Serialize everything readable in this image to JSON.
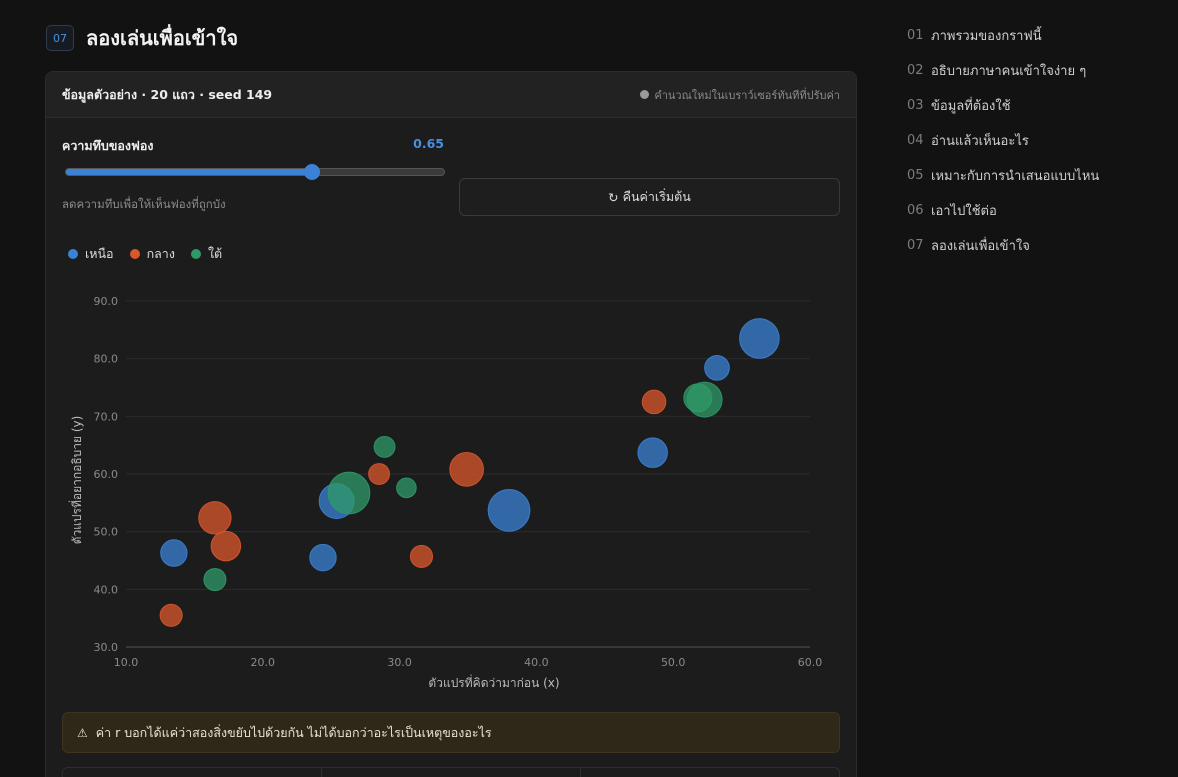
{
  "section": {
    "number": "07",
    "title": "ลองเล่นเพื่อเข้าใจ"
  },
  "card": {
    "title": "ข้อมูลตัวอย่าง · 20 แถว · seed 149",
    "note": "คำนวณใหม่ในเบราว์เซอร์ทันทีที่ปรับค่า"
  },
  "slider": {
    "label": "ความทึบของฟอง",
    "value": 0.65,
    "value_label": "0.65",
    "hint": "ลดความทึบเพื่อให้เห็นฟองที่ถูกบัง"
  },
  "reset_button": {
    "icon": "reset-icon",
    "glyph": "↻",
    "label": "คืนค่าเริ่มต้น"
  },
  "warning": {
    "icon": "warning-icon",
    "glyph": "⚠",
    "text": "ค่า r บอกได้แค่ว่าสองสิ่งขยับไปด้วยกัน ไม่ได้บอกว่าอะไรเป็นเหตุของอะไร"
  },
  "toc": [
    {
      "num": "01",
      "label": "ภาพรวมของกราฟนี้"
    },
    {
      "num": "02",
      "label": "อธิบายภาษาคนเข้าใจง่าย ๆ"
    },
    {
      "num": "03",
      "label": "ข้อมูลที่ต้องใช้"
    },
    {
      "num": "04",
      "label": "อ่านแล้วเห็นอะไร"
    },
    {
      "num": "05",
      "label": "เหมาะกับการนำเสนอแบบไหน"
    },
    {
      "num": "06",
      "label": "เอาไปใช้ต่อ"
    },
    {
      "num": "07",
      "label": "ลองเล่นเพื่อเข้าใจ"
    }
  ],
  "colors": {
    "north": "#3b82d6",
    "central": "#d9572b",
    "south": "#2f9a68",
    "accent": "#4a8fe0"
  },
  "chart_data": {
    "type": "scatter",
    "bubble": true,
    "xlabel": "ตัวแปรที่คิดว่ามาก่อน (x)",
    "ylabel": "ตัวแปรที่อยากอธิบาย (y)",
    "xlim": [
      10,
      60
    ],
    "ylim": [
      30,
      90
    ],
    "xticks": [
      "10.0",
      "20.0",
      "30.0",
      "40.0",
      "50.0",
      "60.0"
    ],
    "yticks": [
      "30.0",
      "40.0",
      "50.0",
      "60.0",
      "70.0",
      "80.0",
      "90.0"
    ],
    "grid": true,
    "legend_position": "top-left",
    "series": [
      {
        "name": "เหนือ",
        "color": "#3b82d6",
        "points": [
          {
            "x": 13.5,
            "y": 46.3,
            "size": 4
          },
          {
            "x": 24.4,
            "y": 45.5,
            "size": 4
          },
          {
            "x": 25.4,
            "y": 55.3,
            "size": 7
          },
          {
            "x": 38.0,
            "y": 53.7,
            "size": 10
          },
          {
            "x": 48.5,
            "y": 63.7,
            "size": 5
          },
          {
            "x": 53.2,
            "y": 78.4,
            "size": 3.5
          },
          {
            "x": 56.3,
            "y": 83.5,
            "size": 9
          }
        ]
      },
      {
        "name": "กลาง",
        "color": "#d9572b",
        "points": [
          {
            "x": 13.3,
            "y": 35.5,
            "size": 2.8
          },
          {
            "x": 16.5,
            "y": 52.4,
            "size": 6
          },
          {
            "x": 17.3,
            "y": 47.5,
            "size": 5
          },
          {
            "x": 28.5,
            "y": 60.0,
            "size": 2.5
          },
          {
            "x": 31.6,
            "y": 45.7,
            "size": 2.8
          },
          {
            "x": 34.9,
            "y": 60.8,
            "size": 6.5
          },
          {
            "x": 48.6,
            "y": 72.5,
            "size": 3.2
          }
        ]
      },
      {
        "name": "ใต้",
        "color": "#2f9a68",
        "points": [
          {
            "x": 16.5,
            "y": 41.7,
            "size": 2.8
          },
          {
            "x": 26.3,
            "y": 56.7,
            "size": 10
          },
          {
            "x": 28.9,
            "y": 64.7,
            "size": 2.5
          },
          {
            "x": 30.5,
            "y": 57.6,
            "size": 2.2
          },
          {
            "x": 52.3,
            "y": 72.9,
            "size": 7
          },
          {
            "x": 51.8,
            "y": 73.2,
            "size": 4.5
          }
        ]
      }
    ]
  }
}
